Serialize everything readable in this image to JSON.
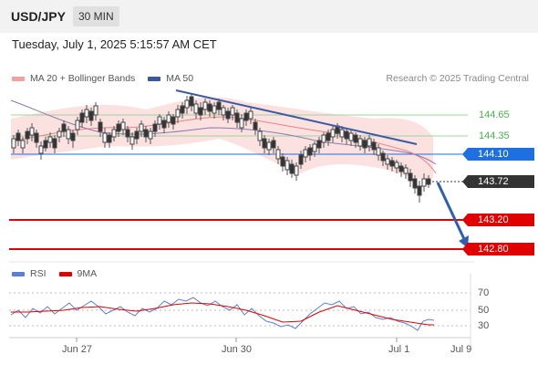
{
  "header": {
    "symbol": "USD/JPY",
    "timeframe": "30 MIN"
  },
  "datetime": "Tuesday, July 1, 2025 5:15:57 AM CET",
  "legend": {
    "ma20_label": "MA 20 + Bollinger Bands",
    "ma50_label": "MA 50",
    "ma20_color": "#f08080",
    "ma50_color": "#3b5998",
    "research": "Research © 2025 Trading Central"
  },
  "levels": {
    "resistance2": "144.65",
    "resistance1": "144.35",
    "pivot": "144.10",
    "last": "143.72",
    "support1": "143.20",
    "support2": "142.80"
  },
  "colors": {
    "pivot": "#1e6fe0",
    "support": "#e00000",
    "resistance": "#4caf50",
    "last": "#333333",
    "trend": "#3b5aa0"
  },
  "rsi_legend": {
    "rsi_label": "RSI",
    "ma_label": "9MA",
    "rsi_color": "#5b7fd6",
    "ma_color": "#e00000"
  },
  "rsi_axis": {
    "tick_70": "70",
    "tick_50": "50",
    "tick_30": "30"
  },
  "x_axis": {
    "d1": "Jun 27",
    "d2": "Jun 30",
    "d3": "Jul 1",
    "d4": "Jul 9"
  },
  "chart_data": {
    "type": "candlestick",
    "y_reference_levels": [
      144.65,
      144.35,
      144.1,
      143.72,
      143.2,
      142.8
    ],
    "close_trend": [
      144.05,
      144.12,
      144.22,
      144.18,
      144.3,
      144.35,
      144.28,
      144.4,
      144.55,
      144.62,
      144.58,
      144.45,
      144.5,
      144.35,
      144.18,
      143.95,
      144.05,
      144.25,
      144.3,
      144.22,
      144.25,
      144.15,
      144.0,
      143.85,
      143.72
    ],
    "rsi": [
      47,
      50,
      54,
      52,
      58,
      55,
      50,
      56,
      60,
      62,
      58,
      52,
      48,
      40,
      36,
      40,
      50,
      55,
      52,
      48,
      46,
      42,
      38,
      36,
      40
    ],
    "rsi_ma": [
      48,
      49,
      51,
      52,
      53,
      54,
      53,
      54,
      56,
      58,
      58,
      56,
      53,
      48,
      43,
      41,
      43,
      47,
      50,
      50,
      48,
      45,
      42,
      39,
      38
    ]
  }
}
